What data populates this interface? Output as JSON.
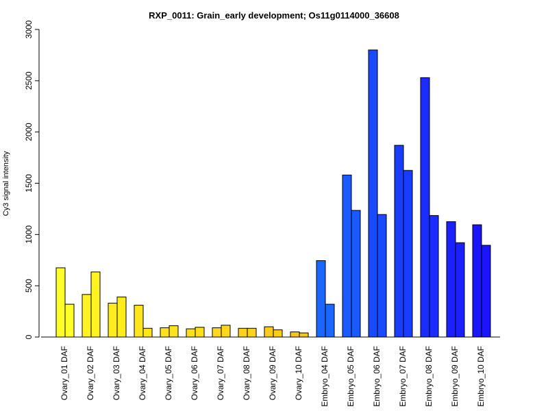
{
  "chart_data": {
    "type": "bar",
    "title": "RXP_0011: Grain_early development; Os11g0114000_36608",
    "xlabel": "",
    "ylabel": "Cy3 signal intensity",
    "ylim": [
      0,
      3000
    ],
    "yticks": [
      0,
      500,
      1000,
      1500,
      2000,
      2500,
      3000
    ],
    "grid": false,
    "legend": "none",
    "categories": [
      "Ovary_01 DAF",
      "Ovary_02 DAF",
      "Ovary_03 DAF",
      "Ovary_04 DAF",
      "Ovary_05 DAF",
      "Ovary_06 DAF",
      "Ovary_07 DAF",
      "Ovary_08 DAF",
      "Ovary_09 DAF",
      "Ovary_10 DAF",
      "Embryo_04 DAF",
      "Embryo_05 DAF",
      "Embryo_06 DAF",
      "Embryo_07 DAF",
      "Embryo_08 DAF",
      "Embryo_09 DAF",
      "Embryo_10 DAF"
    ],
    "series": [
      {
        "values": [
          675,
          415,
          330,
          310,
          90,
          80,
          90,
          85,
          100,
          50,
          745,
          1580,
          2800,
          1870,
          2530,
          1125,
          1095
        ]
      },
      {
        "values": [
          320,
          635,
          390,
          85,
          110,
          95,
          115,
          85,
          70,
          40,
          320,
          1235,
          1195,
          1625,
          1185,
          920,
          895
        ]
      }
    ],
    "colors": [
      "#ffff2a",
      "#fff321",
      "#ffec1c",
      "#ffe61d",
      "#ffe21e",
      "#ffde1c",
      "#ffd81b",
      "#fcd21b",
      "#f9cc1b",
      "#f7c61a",
      "#1a66ff",
      "#1a5aff",
      "#1a4aff",
      "#1a3cff",
      "#1a2cff",
      "#1a20ff",
      "#1a14ff"
    ]
  }
}
